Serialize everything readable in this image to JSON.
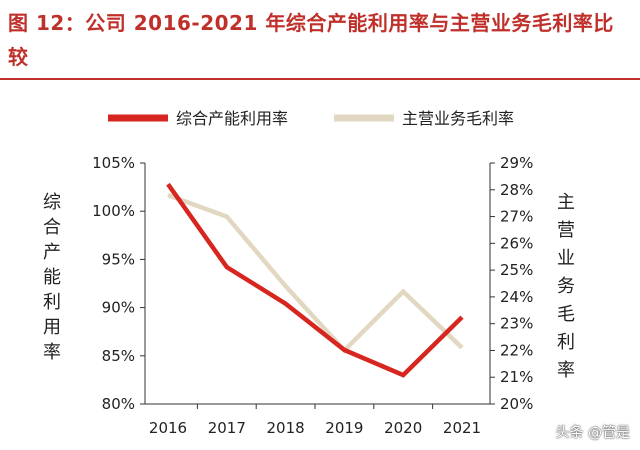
{
  "title": "图 12：公司 2016-2021 年综合产能利用率与主营业务毛利率比较",
  "watermark": "头条 @管是",
  "chart_data": {
    "type": "line",
    "categories": [
      "2016",
      "2017",
      "2018",
      "2019",
      "2020",
      "2021"
    ],
    "series": [
      {
        "name": "综合产能利用率",
        "axis": "left",
        "color": "#d7261f",
        "values": [
          102.8,
          94.2,
          90.4,
          85.6,
          83.0,
          89.0
        ]
      },
      {
        "name": "主营业务毛利率",
        "axis": "right",
        "color": "#e2d8c2",
        "values": [
          27.8,
          27.0,
          24.4,
          22.0,
          24.2,
          22.1
        ]
      }
    ],
    "y_left": {
      "label": "综合产能利用率",
      "ylim": [
        80,
        105
      ],
      "ticks": [
        "80%",
        "85%",
        "90%",
        "95%",
        "100%",
        "105%"
      ]
    },
    "y_right": {
      "label": "主营业务毛利率",
      "ylim": [
        20,
        29
      ],
      "ticks": [
        "20%",
        "21%",
        "22%",
        "23%",
        "24%",
        "25%",
        "26%",
        "27%",
        "28%",
        "29%"
      ]
    },
    "legend": "top",
    "grid": false
  }
}
